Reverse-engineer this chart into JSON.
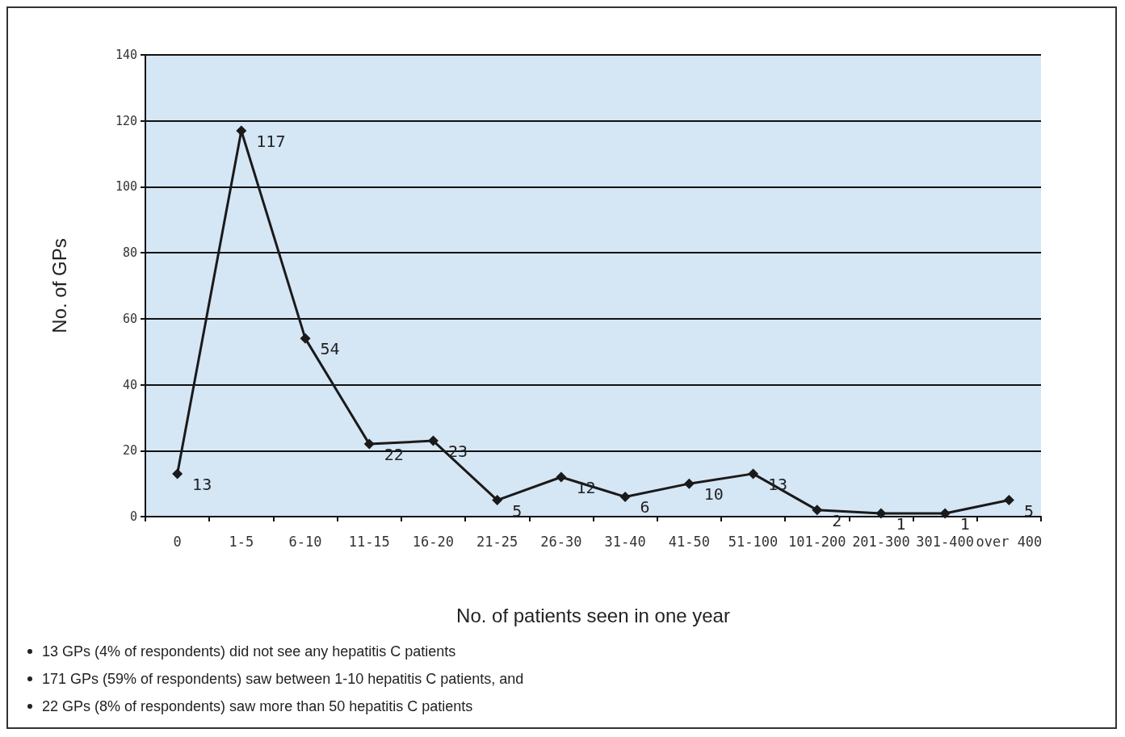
{
  "chart_data": {
    "type": "line",
    "xlabel": "No. of patients seen in one year",
    "ylabel": "No. of GPs",
    "categories": [
      "0",
      "1-5",
      "6-10",
      "11-15",
      "16-20",
      "21-25",
      "26-30",
      "31-40",
      "41-50",
      "51-100",
      "101-200",
      "201-300",
      "301-400",
      "over 400"
    ],
    "series": [
      {
        "color": "#1a1a1a",
        "values": [
          13,
          117,
          54,
          22,
          23,
          5,
          12,
          6,
          10,
          13,
          2,
          1,
          1,
          5
        ]
      }
    ],
    "ylim": [
      0,
      140
    ],
    "yticks": [
      0,
      20,
      40,
      60,
      80,
      100,
      120,
      140
    ],
    "grid": "y",
    "marker": "diamond",
    "line_style": "solid",
    "data_labels": true,
    "annotations": [
      "13 GPs (4% of respondents) did not see any hepatitis C patients",
      "171 GPs (59% of respondents) saw between 1-10 hepatitis C patients, and",
      "22 GPs (8% of respondents) saw more than 50 hepatitis C patients"
    ]
  }
}
